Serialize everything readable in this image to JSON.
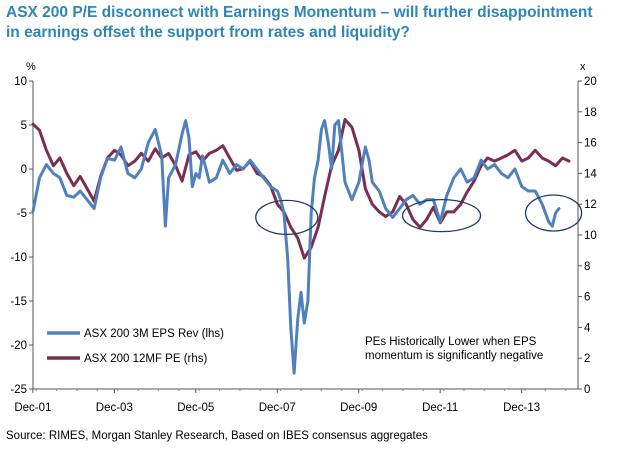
{
  "title_lines": [
    "ASX 200 P/E disconnect with Earnings Momentum – will further disappointment",
    "in earnings offset the support from rates and liquidity?"
  ],
  "source": "Source: RIMES, Morgan Stanley Research, Based on IBES consensus aggregates",
  "colors": {
    "title": "#2e86b5",
    "eps": "#4f81bd",
    "pe": "#7b2d52",
    "circle": "#1f3e66"
  },
  "chart_data": {
    "type": "line",
    "x_tick_labels": [
      "Dec-01",
      "Dec-03",
      "Dec-05",
      "Dec-07",
      "Dec-09",
      "Dec-11",
      "Dec-13"
    ],
    "x_range": [
      2001.92,
      2015.3
    ],
    "left_axis": {
      "unit": "%",
      "range": [
        -25,
        10
      ],
      "ticks": [
        10,
        5,
        0,
        -5,
        -10,
        -15,
        -20,
        -25
      ]
    },
    "right_axis": {
      "unit": "x",
      "range": [
        0,
        20
      ],
      "ticks": [
        20,
        18,
        16,
        14,
        12,
        10,
        8,
        6,
        4,
        2,
        0
      ]
    },
    "annotation": [
      "PEs Historically Lower when EPS",
      "momentum is significantly negative"
    ],
    "series": [
      {
        "name": "ASX 200 3M EPS Rev (lhs)",
        "axis": "left",
        "x": [
          2001.92,
          2002.08,
          2002.25,
          2002.42,
          2002.58,
          2002.75,
          2002.92,
          2003.08,
          2003.25,
          2003.42,
          2003.58,
          2003.75,
          2003.92,
          2004.08,
          2004.25,
          2004.42,
          2004.58,
          2004.75,
          2004.92,
          2005.0,
          2005.08,
          2005.17,
          2005.25,
          2005.42,
          2005.58,
          2005.67,
          2005.75,
          2005.83,
          2005.92,
          2006.0,
          2006.08,
          2006.17,
          2006.25,
          2006.42,
          2006.58,
          2006.75,
          2006.92,
          2007.08,
          2007.25,
          2007.42,
          2007.58,
          2007.75,
          2007.92,
          2008.0,
          2008.08,
          2008.17,
          2008.25,
          2008.33,
          2008.42,
          2008.5,
          2008.58,
          2008.67,
          2008.75,
          2008.83,
          2008.92,
          2009.0,
          2009.08,
          2009.17,
          2009.25,
          2009.33,
          2009.42,
          2009.58,
          2009.75,
          2009.92,
          2010.0,
          2010.08,
          2010.17,
          2010.25,
          2010.42,
          2010.58,
          2010.75,
          2010.92,
          2011.08,
          2011.25,
          2011.42,
          2011.58,
          2011.75,
          2011.92,
          2012.08,
          2012.25,
          2012.42,
          2012.58,
          2012.75,
          2012.92,
          2013.08,
          2013.25,
          2013.42,
          2013.58,
          2013.75,
          2013.92,
          2014.08,
          2014.25,
          2014.42,
          2014.58,
          2014.67,
          2014.75,
          2014.83
        ],
        "values": [
          -4.8,
          -1.0,
          0.5,
          -0.5,
          -1.0,
          -3.0,
          -3.2,
          -2.5,
          -3.5,
          -4.5,
          -1.0,
          1.2,
          1.0,
          2.5,
          -0.5,
          -1.0,
          0.0,
          3.0,
          4.5,
          3.0,
          1.5,
          -6.5,
          -1.0,
          0.5,
          4.0,
          5.5,
          3.5,
          -2.0,
          -0.5,
          -1.0,
          1.5,
          0.0,
          -1.5,
          -1.0,
          1.0,
          -0.5,
          0.5,
          0.0,
          1.0,
          0.0,
          -1.0,
          -2.0,
          -2.5,
          -3.5,
          -5.0,
          -10.0,
          -18.0,
          -23.2,
          -17.0,
          -14.0,
          -17.5,
          -15.0,
          -5.0,
          -1.0,
          1.0,
          4.5,
          5.5,
          3.0,
          0.0,
          5.0,
          5.5,
          -1.5,
          -3.5,
          -1.5,
          0.5,
          2.5,
          1.0,
          -1.5,
          -2.5,
          -4.5,
          -5.5,
          -4.5,
          -3.5,
          -3.0,
          -4.0,
          -3.5,
          -3.5,
          -6.0,
          -3.0,
          -1.0,
          0.0,
          -1.5,
          -1.0,
          1.0,
          0.0,
          0.5,
          -0.5,
          -1.0,
          0.0,
          -2.0,
          -2.5,
          -2.5,
          -4.0,
          -6.0,
          -6.5,
          -5.0,
          -4.5
        ]
      },
      {
        "name": "ASX 200 12MF PE (rhs)",
        "axis": "right",
        "x": [
          2001.92,
          2002.08,
          2002.25,
          2002.42,
          2002.58,
          2002.75,
          2002.92,
          2003.08,
          2003.25,
          2003.42,
          2003.58,
          2003.75,
          2003.92,
          2004.08,
          2004.25,
          2004.42,
          2004.58,
          2004.75,
          2004.92,
          2005.08,
          2005.25,
          2005.42,
          2005.58,
          2005.75,
          2005.92,
          2006.08,
          2006.25,
          2006.42,
          2006.58,
          2006.75,
          2006.92,
          2007.08,
          2007.25,
          2007.42,
          2007.58,
          2007.75,
          2007.92,
          2008.08,
          2008.25,
          2008.42,
          2008.58,
          2008.75,
          2008.92,
          2009.08,
          2009.25,
          2009.42,
          2009.58,
          2009.75,
          2009.92,
          2010.08,
          2010.25,
          2010.42,
          2010.58,
          2010.75,
          2010.92,
          2011.08,
          2011.25,
          2011.42,
          2011.58,
          2011.75,
          2011.92,
          2012.08,
          2012.25,
          2012.42,
          2012.58,
          2012.75,
          2012.92,
          2013.08,
          2013.25,
          2013.42,
          2013.58,
          2013.75,
          2013.92,
          2014.08,
          2014.25,
          2014.42,
          2014.58,
          2014.75,
          2014.92,
          2015.08
        ],
        "values": [
          17.2,
          16.8,
          15.5,
          14.5,
          15.0,
          14.0,
          13.2,
          13.8,
          13.0,
          12.2,
          13.8,
          15.0,
          15.5,
          15.2,
          14.5,
          14.8,
          15.3,
          14.8,
          15.6,
          15.0,
          15.3,
          14.5,
          13.5,
          15.2,
          15.4,
          14.8,
          15.3,
          15.5,
          15.8,
          15.0,
          14.2,
          14.3,
          14.8,
          14.0,
          13.8,
          13.2,
          12.0,
          11.5,
          10.5,
          9.8,
          8.5,
          9.2,
          10.5,
          12.5,
          14.5,
          15.5,
          17.5,
          17.0,
          15.5,
          13.0,
          12.0,
          11.5,
          11.2,
          11.5,
          12.5,
          12.0,
          11.0,
          10.5,
          11.0,
          11.8,
          10.8,
          11.5,
          11.5,
          12.0,
          12.8,
          13.5,
          14.5,
          15.0,
          14.8,
          15.0,
          15.2,
          15.5,
          14.8,
          15.0,
          15.5,
          15.0,
          14.8,
          14.5,
          15.0,
          14.8
        ]
      }
    ]
  }
}
